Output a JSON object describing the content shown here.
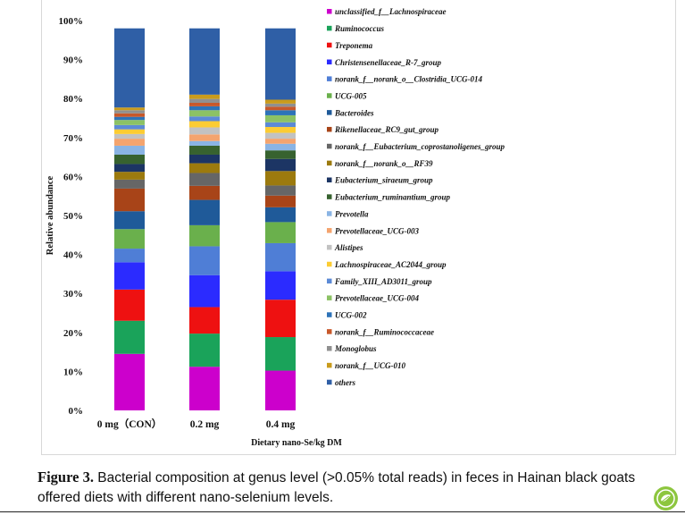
{
  "chart_data": {
    "type": "bar",
    "stacked": true,
    "categories": [
      "0 mg（CON）",
      "0.2 mg",
      "0.4 mg"
    ],
    "xlabel": "Dietary nano-Se/kg DM",
    "ylabel": "Relative abundance",
    "ylim": [
      0,
      100
    ],
    "yticks": [
      "0%",
      "10%",
      "20%",
      "30%",
      "40%",
      "50%",
      "60%",
      "70%",
      "80%",
      "90%",
      "100%"
    ],
    "legend_position": "right",
    "series": [
      {
        "name": "unclassified_f__Lachnospiraceae",
        "color": "#cc00cc",
        "values": [
          14.5,
          11.2,
          10.2
        ]
      },
      {
        "name": "Ruminococcus",
        "color": "#1aa35a",
        "values": [
          8.5,
          8.5,
          8.6
        ]
      },
      {
        "name": "Treponema",
        "color": "#ee1111",
        "values": [
          8.0,
          6.8,
          9.6
        ]
      },
      {
        "name": "Christensenellaceae_R-7_group",
        "color": "#2b2bff",
        "values": [
          7.0,
          8.2,
          7.3
        ]
      },
      {
        "name": "norank_f__norank_o__Clostridia_UCG-014",
        "color": "#4f7ed6",
        "values": [
          3.5,
          7.4,
          7.2
        ]
      },
      {
        "name": "UCG-005",
        "color": "#6ab04c",
        "values": [
          5.0,
          5.4,
          5.4
        ]
      },
      {
        "name": "Bacteroides",
        "color": "#1f5a99",
        "values": [
          4.6,
          6.5,
          3.8
        ]
      },
      {
        "name": "Rikenellaceae_RC9_gut_group",
        "color": "#a84418",
        "values": [
          5.8,
          3.6,
          3.0
        ]
      },
      {
        "name": "norank_f__Eubacterium_coprostanoligenes_group",
        "color": "#666666",
        "values": [
          2.3,
          3.3,
          2.6
        ]
      },
      {
        "name": "norank_f__norank_o__RF39",
        "color": "#9c7a0e",
        "values": [
          2.0,
          2.5,
          3.7
        ]
      },
      {
        "name": "Eubacterium_siraeum_group",
        "color": "#1c3564",
        "values": [
          2.0,
          2.2,
          3.1
        ]
      },
      {
        "name": "Eubacterium_ruminantium_group",
        "color": "#37622f",
        "values": [
          2.4,
          2.3,
          2.2
        ]
      },
      {
        "name": "Prevotella",
        "color": "#8ab4e4",
        "values": [
          2.3,
          1.2,
          1.7
        ]
      },
      {
        "name": "Prevotellaceae_UCG-003",
        "color": "#f4a46e",
        "values": [
          1.8,
          1.7,
          1.3
        ]
      },
      {
        "name": "Alistipes",
        "color": "#c2c2c2",
        "values": [
          1.2,
          1.8,
          1.5
        ]
      },
      {
        "name": "Lachnospiraceae_AC2044_group",
        "color": "#fccc33",
        "values": [
          1.2,
          1.6,
          1.5
        ]
      },
      {
        "name": "Family_XIII_AD3011_group",
        "color": "#5c8ad6",
        "values": [
          1.1,
          1.2,
          1.2
        ]
      },
      {
        "name": "Prevotellaceae_UCG-004",
        "color": "#8cc265",
        "values": [
          1.3,
          1.6,
          1.8
        ]
      },
      {
        "name": "UCG-002",
        "color": "#2d73b8",
        "values": [
          0.8,
          1.0,
          1.3
        ]
      },
      {
        "name": "norank_f__Ruminococcaceae",
        "color": "#c8582a",
        "values": [
          0.9,
          0.9,
          0.9
        ]
      },
      {
        "name": "Monoglobus",
        "color": "#909090",
        "values": [
          0.8,
          1.0,
          0.8
        ]
      },
      {
        "name": "norank_f__UCG-010",
        "color": "#c99b1c",
        "values": [
          0.7,
          1.1,
          1.0
        ]
      },
      {
        "name": "others",
        "color": "#2f5fa6",
        "values": [
          20.3,
          17.0,
          18.3
        ]
      }
    ]
  },
  "caption": {
    "label": "Figure 3.",
    "text": "Bacterial composition at genus level (>0.05% total reads) in feces in Hainan black goats offered diets with different nano-selenium levels."
  }
}
